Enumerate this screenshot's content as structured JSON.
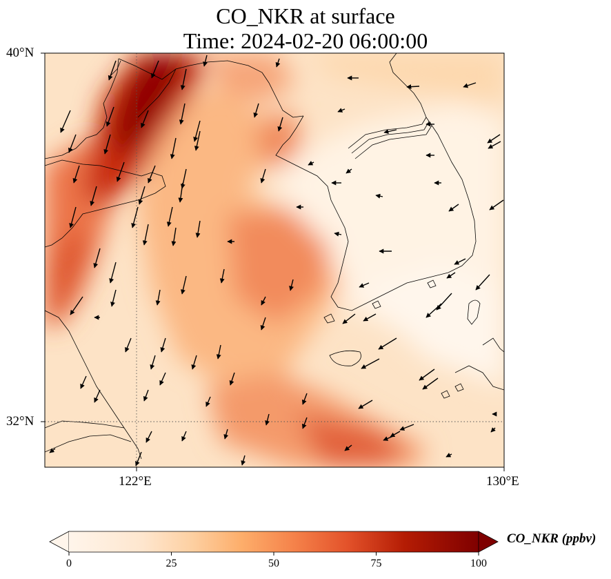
{
  "title": {
    "line1": "CO_NKR at surface",
    "line2": "Time: 2024-02-20 06:00:00"
  },
  "map": {
    "extent": {
      "lon_min": 119.5,
      "lon_max": 130,
      "lat_min": 30.8,
      "lat_max": 40
    },
    "lat_ticks": [
      {
        "value": 40,
        "label": "40°N"
      },
      {
        "value": 32,
        "label": "32°N"
      }
    ],
    "lon_ticks": [
      {
        "value": 122,
        "label": "122°E"
      },
      {
        "value": 130,
        "label": "130°E"
      }
    ],
    "gridlines": {
      "lon": 122,
      "lat": 32,
      "style": "dotted"
    },
    "wind_arrows": "present"
  },
  "colorbar": {
    "label": "CO_NKR (ppbv)",
    "cmap": [
      "#fff5eb",
      "#fdd9b4",
      "#fdab67",
      "#f5824a",
      "#de4e26",
      "#b01a04",
      "#7f0000"
    ],
    "ticks": [
      {
        "value": 0,
        "label": "0"
      },
      {
        "value": 25,
        "label": "25"
      },
      {
        "value": 50,
        "label": "50"
      },
      {
        "value": 75,
        "label": "75"
      },
      {
        "value": 100,
        "label": "100"
      }
    ],
    "min": 0,
    "max": 100,
    "extend": "both"
  }
}
